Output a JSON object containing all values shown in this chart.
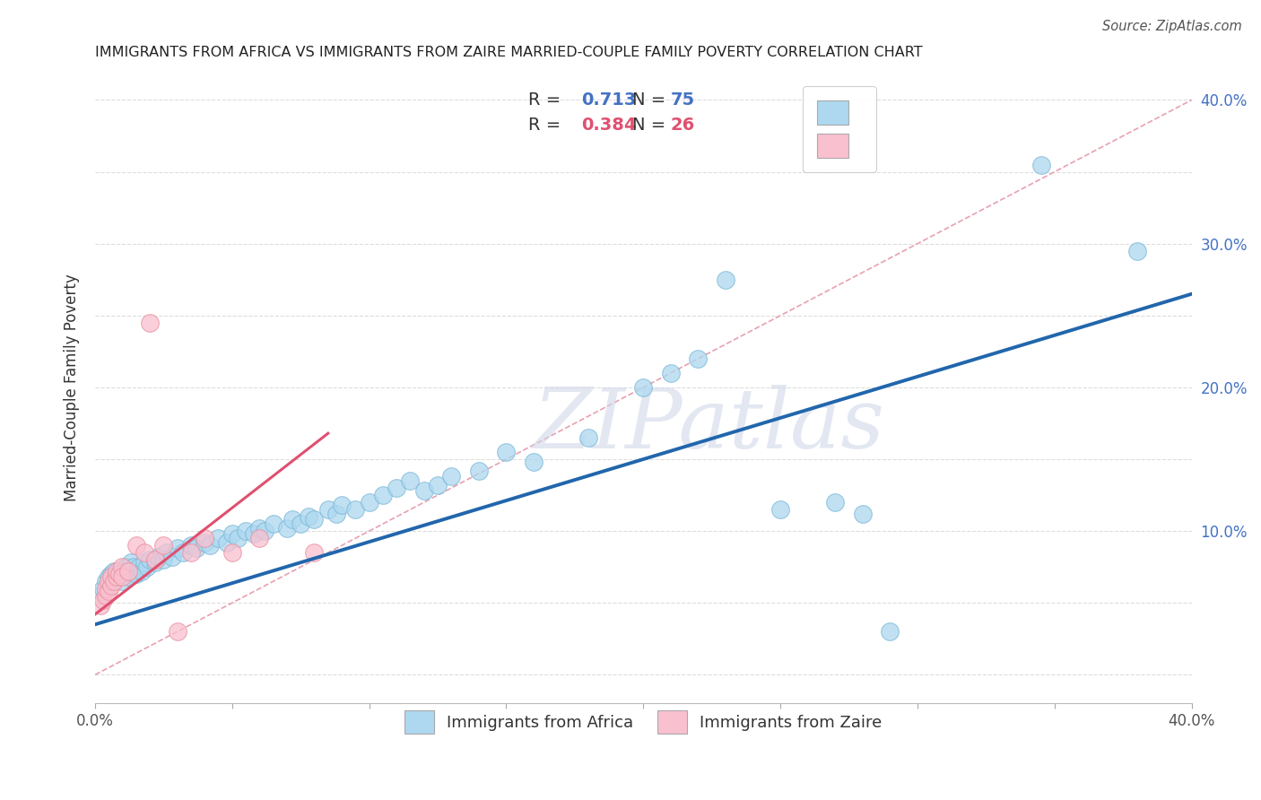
{
  "title": "IMMIGRANTS FROM AFRICA VS IMMIGRANTS FROM ZAIRE MARRIED-COUPLE FAMILY POVERTY CORRELATION CHART",
  "source": "Source: ZipAtlas.com",
  "ylabel": "Married-Couple Family Poverty",
  "x_min": 0.0,
  "x_max": 0.4,
  "y_min": -0.02,
  "y_max": 0.42,
  "legend_label_africa": "Immigrants from Africa",
  "legend_label_zaire": "Immigrants from Zaire",
  "blue_color": "#ADD8F0",
  "blue_edge_color": "#7BB8D8",
  "pink_color": "#F9C0CF",
  "pink_edge_color": "#E8909F",
  "blue_line_color": "#2166AC",
  "pink_line_color": "#E05070",
  "diag_line_color": "#E8A0B0",
  "watermark": "ZIPatlas",
  "watermark_color": "#D0D8E8",
  "blue_scatter_x": [
    0.002,
    0.003,
    0.004,
    0.005,
    0.005,
    0.006,
    0.006,
    0.007,
    0.007,
    0.008,
    0.008,
    0.009,
    0.01,
    0.01,
    0.011,
    0.012,
    0.013,
    0.013,
    0.014,
    0.015,
    0.016,
    0.017,
    0.018,
    0.019,
    0.02,
    0.022,
    0.023,
    0.025,
    0.026,
    0.028,
    0.03,
    0.032,
    0.035,
    0.037,
    0.04,
    0.042,
    0.045,
    0.048,
    0.05,
    0.052,
    0.055,
    0.058,
    0.06,
    0.062,
    0.065,
    0.07,
    0.072,
    0.075,
    0.078,
    0.08,
    0.085,
    0.088,
    0.09,
    0.095,
    0.1,
    0.105,
    0.11,
    0.115,
    0.12,
    0.125,
    0.13,
    0.14,
    0.15,
    0.16,
    0.18,
    0.2,
    0.21,
    0.22,
    0.23,
    0.25,
    0.27,
    0.28,
    0.29,
    0.345,
    0.38
  ],
  "blue_scatter_y": [
    0.055,
    0.06,
    0.065,
    0.06,
    0.068,
    0.065,
    0.07,
    0.065,
    0.072,
    0.07,
    0.068,
    0.072,
    0.065,
    0.07,
    0.075,
    0.068,
    0.072,
    0.078,
    0.075,
    0.07,
    0.075,
    0.072,
    0.078,
    0.075,
    0.08,
    0.078,
    0.082,
    0.08,
    0.085,
    0.082,
    0.088,
    0.085,
    0.09,
    0.088,
    0.092,
    0.09,
    0.095,
    0.092,
    0.098,
    0.095,
    0.1,
    0.098,
    0.102,
    0.1,
    0.105,
    0.102,
    0.108,
    0.105,
    0.11,
    0.108,
    0.115,
    0.112,
    0.118,
    0.115,
    0.12,
    0.125,
    0.13,
    0.135,
    0.128,
    0.132,
    0.138,
    0.142,
    0.155,
    0.148,
    0.165,
    0.2,
    0.21,
    0.22,
    0.275,
    0.115,
    0.12,
    0.112,
    0.03,
    0.355,
    0.295
  ],
  "pink_scatter_x": [
    0.002,
    0.003,
    0.004,
    0.004,
    0.005,
    0.005,
    0.006,
    0.006,
    0.007,
    0.008,
    0.008,
    0.009,
    0.01,
    0.01,
    0.012,
    0.015,
    0.018,
    0.02,
    0.022,
    0.025,
    0.03,
    0.035,
    0.04,
    0.05,
    0.06,
    0.08
  ],
  "pink_scatter_y": [
    0.048,
    0.052,
    0.055,
    0.06,
    0.058,
    0.065,
    0.062,
    0.068,
    0.065,
    0.068,
    0.072,
    0.07,
    0.075,
    0.068,
    0.072,
    0.09,
    0.085,
    0.245,
    0.08,
    0.09,
    0.03,
    0.085,
    0.095,
    0.085,
    0.095,
    0.085
  ],
  "blue_line_x0": 0.0,
  "blue_line_y0": 0.035,
  "blue_line_x1": 0.4,
  "blue_line_y1": 0.265,
  "pink_line_x0": 0.0,
  "pink_line_y0": 0.042,
  "pink_line_x1": 0.085,
  "pink_line_y1": 0.168,
  "diag_line_x0": 0.0,
  "diag_line_y0": 0.0,
  "diag_line_x1": 0.4,
  "diag_line_y1": 0.4
}
